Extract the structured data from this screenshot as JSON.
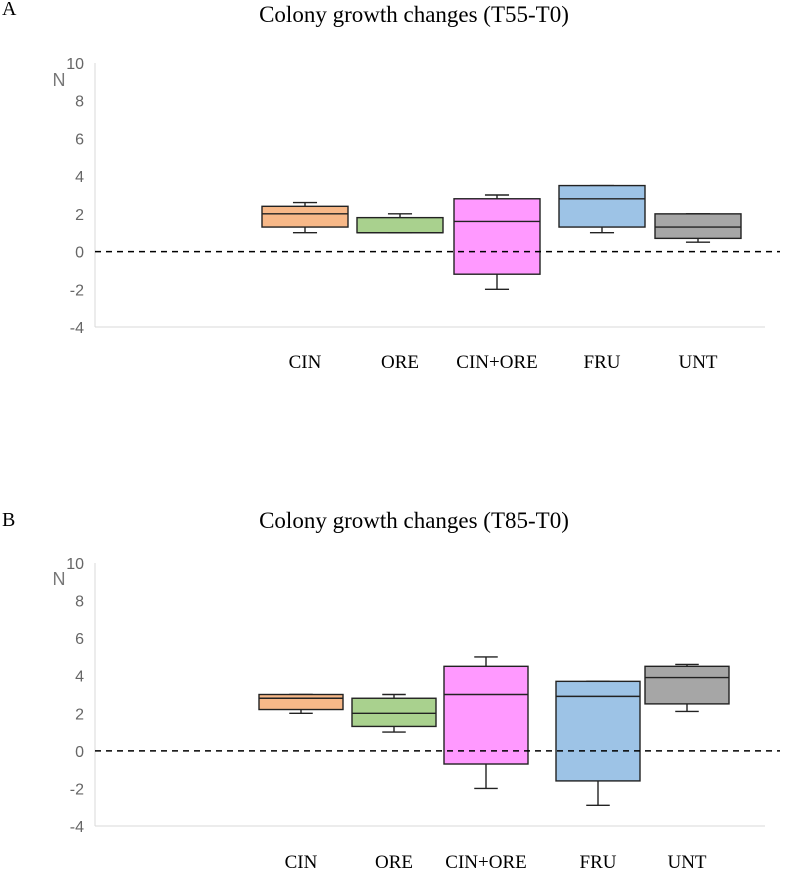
{
  "chart_data": [
    {
      "type": "box",
      "panel_label": "A",
      "title": "Colony growth changes (T55-T0)",
      "ylabel": "N",
      "xlabel": "",
      "ylim": [
        -4,
        10
      ],
      "yticks": [
        -4,
        -2,
        0,
        2,
        4,
        6,
        8,
        10
      ],
      "reference_line": 0,
      "categories": [
        "CIN",
        "ORE",
        "CIN+ORE",
        "FRU",
        "UNT"
      ],
      "colors": [
        "#f7b888",
        "#a9d18e",
        "#ff99ff",
        "#9dc3e6",
        "#a6a6a6"
      ],
      "boxes": [
        {
          "min": 1.0,
          "q1": 1.3,
          "median": 2.0,
          "q3": 2.4,
          "max": 2.6
        },
        {
          "min": 1.0,
          "q1": 1.0,
          "median": 1.0,
          "q3": 1.8,
          "max": 2.0
        },
        {
          "min": -2.0,
          "q1": -1.2,
          "median": 1.6,
          "q3": 2.8,
          "max": 3.0
        },
        {
          "min": 1.0,
          "q1": 1.3,
          "median": 2.8,
          "q3": 3.5,
          "max": 3.5
        },
        {
          "min": 0.5,
          "q1": 0.7,
          "median": 1.3,
          "q3": 2.0,
          "max": 2.0
        }
      ]
    },
    {
      "type": "box",
      "panel_label": "B",
      "title": "Colony growth changes (T85-T0)",
      "ylabel": "N",
      "xlabel": "",
      "ylim": [
        -4,
        10
      ],
      "yticks": [
        -4,
        -2,
        0,
        2,
        4,
        6,
        8,
        10
      ],
      "reference_line": 0,
      "categories": [
        "CIN",
        "ORE",
        "CIN+ORE",
        "FRU",
        "UNT"
      ],
      "colors": [
        "#f7b888",
        "#a9d18e",
        "#ff99ff",
        "#9dc3e6",
        "#a6a6a6"
      ],
      "boxes": [
        {
          "min": 2.0,
          "q1": 2.2,
          "median": 2.8,
          "q3": 3.0,
          "max": 3.0
        },
        {
          "min": 1.0,
          "q1": 1.3,
          "median": 2.0,
          "q3": 2.8,
          "max": 3.0
        },
        {
          "min": -2.0,
          "q1": -0.7,
          "median": 3.0,
          "q3": 4.5,
          "max": 5.0
        },
        {
          "min": -2.9,
          "q1": -1.6,
          "median": 2.9,
          "q3": 3.7,
          "max": 3.7
        },
        {
          "min": 2.1,
          "q1": 2.5,
          "median": 3.9,
          "q3": 4.5,
          "max": 4.6
        }
      ]
    }
  ]
}
